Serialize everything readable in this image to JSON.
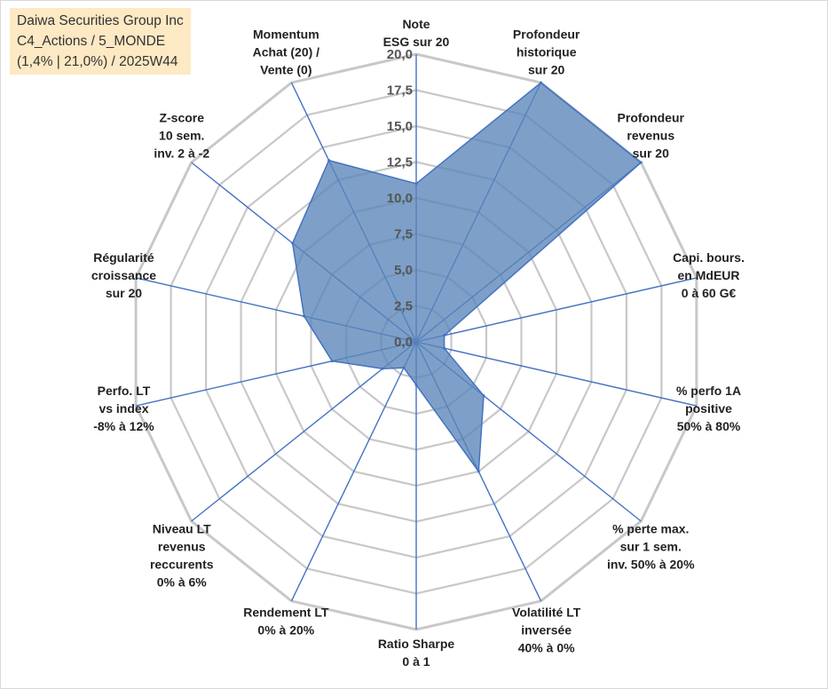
{
  "info": {
    "line1": "Daiwa Securities Group Inc",
    "line2": "C4_Actions / 5_MONDE",
    "line3": "(1,4% | 21,0%) / 2025W44"
  },
  "chart_data": {
    "type": "radar",
    "range": [
      0,
      20
    ],
    "ticks": [
      "0,0",
      "2,5",
      "5,0",
      "7,5",
      "10,0",
      "12,5",
      "15,0",
      "17,5",
      "20,0"
    ],
    "tick_values": [
      0,
      2.5,
      5,
      7.5,
      10,
      12.5,
      15,
      17.5,
      20
    ],
    "grid": true,
    "series": [
      {
        "values": [
          11,
          20,
          20,
          2,
          2,
          6,
          10,
          3,
          2,
          3,
          6,
          8,
          11,
          14
        ]
      }
    ],
    "axes": [
      {
        "lines": [
          "Note",
          "ESG sur 20"
        ]
      },
      {
        "lines": [
          "Profondeur",
          "historique",
          "sur 20"
        ]
      },
      {
        "lines": [
          "Profondeur",
          "revenus",
          "sur 20"
        ]
      },
      {
        "lines": [
          "Capi. bours.",
          "en MdEUR",
          "0 à 60 G€"
        ]
      },
      {
        "lines": [
          "% perfo 1A",
          "positive",
          "50% à 80%"
        ]
      },
      {
        "lines": [
          "% perte max.",
          "sur 1 sem.",
          "inv. 50% à 20%"
        ]
      },
      {
        "lines": [
          "Volatilité LT",
          "inversée",
          "40% à 0%"
        ]
      },
      {
        "lines": [
          "Ratio Sharpe",
          "0 à 1"
        ]
      },
      {
        "lines": [
          "Rendement LT",
          "0% à 20%"
        ]
      },
      {
        "lines": [
          "Niveau LT",
          "revenus",
          "reccurents",
          "0% à 6%"
        ]
      },
      {
        "lines": [
          "Perfo. LT",
          "vs index",
          "-8% à 12%"
        ]
      },
      {
        "lines": [
          "Régularité",
          "croissance",
          "sur 20"
        ]
      },
      {
        "lines": [
          "Z-score",
          "10 sem.",
          "inv. 2 à -2"
        ]
      },
      {
        "lines": [
          "Momentum",
          "Achat (20) /",
          "Vente (0)"
        ]
      }
    ],
    "colors": {
      "fill": "#5a85b9",
      "stroke": "#4472c4",
      "grid": "#c8c8c8",
      "spoke": "#4472c4"
    }
  }
}
